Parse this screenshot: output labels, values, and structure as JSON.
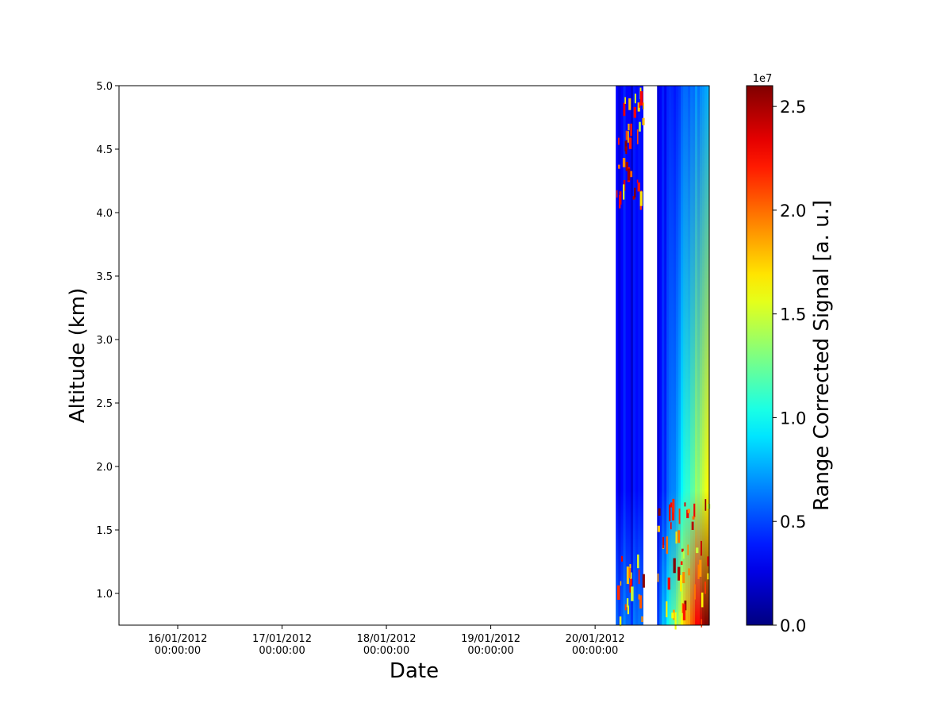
{
  "chart_data": {
    "type": "heatmap",
    "title": "",
    "xlabel": "Date",
    "ylabel": "Altitude (km)",
    "colorbar_label": "Range Corrected Signal [a. u.]",
    "colorbar_exponent": "1e7",
    "colormap": "jet",
    "xlim": [
      "2012-01-15T10:30:00",
      "2012-01-21T02:15:00"
    ],
    "ylim": [
      0.75,
      5.0
    ],
    "clim": [
      0,
      2.6
    ],
    "x_ticks": [
      {
        "date": "2012-01-16T00:00:00",
        "label": "16/01/2012",
        "label2": "00:00:00"
      },
      {
        "date": "2012-01-17T00:00:00",
        "label": "17/01/2012",
        "label2": "00:00:00"
      },
      {
        "date": "2012-01-18T00:00:00",
        "label": "18/01/2012",
        "label2": "00:00:00"
      },
      {
        "date": "2012-01-19T00:00:00",
        "label": "19/01/2012",
        "label2": "00:00:00"
      },
      {
        "date": "2012-01-20T00:00:00",
        "label": "20/01/2012",
        "label2": "00:00:00"
      }
    ],
    "y_ticks": [
      "1.0",
      "1.5",
      "2.0",
      "2.5",
      "3.0",
      "3.5",
      "4.0",
      "4.5",
      "5.0"
    ],
    "colorbar_ticks": [
      "0.0",
      "0.5",
      "1.0",
      "1.5",
      "2.0",
      "2.5"
    ],
    "data_segments": [
      {
        "start": "2012-01-20T04:45:00",
        "end": "2012-01-20T11:00:00",
        "level_low": 0.25,
        "level_high": 0.2
      },
      {
        "start": "2012-01-20T14:15:00",
        "end": "2012-01-21T02:15:00",
        "level_low": 0.9,
        "level_high": 0.35
      }
    ]
  }
}
